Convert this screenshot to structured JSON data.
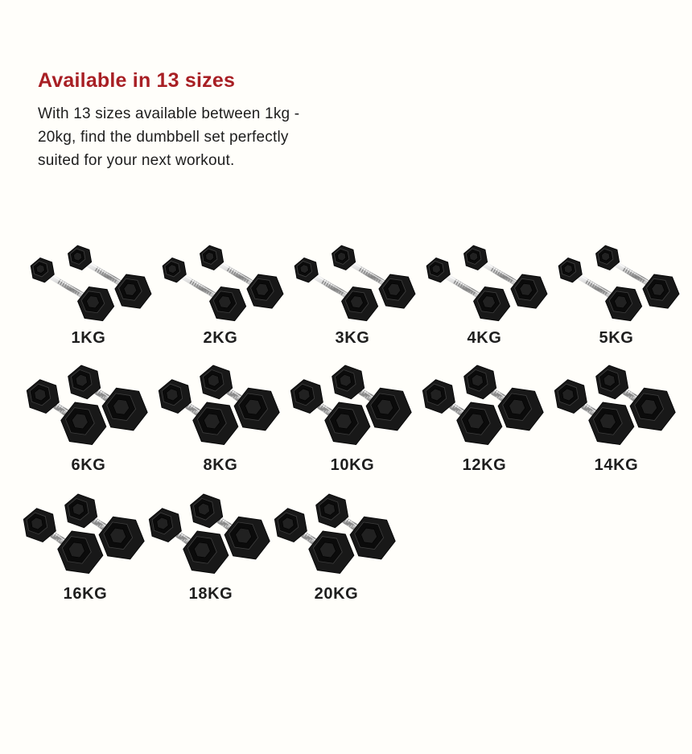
{
  "page": {
    "background": "#fffefa"
  },
  "header": {
    "title": "Available in 13 sizes",
    "title_color": "#a81f24",
    "description": "With 13 sizes available between 1kg - 20kg, find the dumbbell set perfectly suited for your next workout."
  },
  "weights": {
    "image_alt": "pair of black hex rubber dumbbells with chrome knurled handles",
    "rows": [
      {
        "items": [
          {
            "label": "1KG"
          },
          {
            "label": "2KG"
          },
          {
            "label": "3KG"
          },
          {
            "label": "4KG"
          },
          {
            "label": "5KG"
          }
        ]
      },
      {
        "items": [
          {
            "label": "6KG"
          },
          {
            "label": "8KG"
          },
          {
            "label": "10KG"
          },
          {
            "label": "12KG"
          },
          {
            "label": "14KG"
          }
        ]
      },
      {
        "items": [
          {
            "label": "16KG"
          },
          {
            "label": "18KG"
          },
          {
            "label": "20KG"
          }
        ]
      }
    ]
  }
}
